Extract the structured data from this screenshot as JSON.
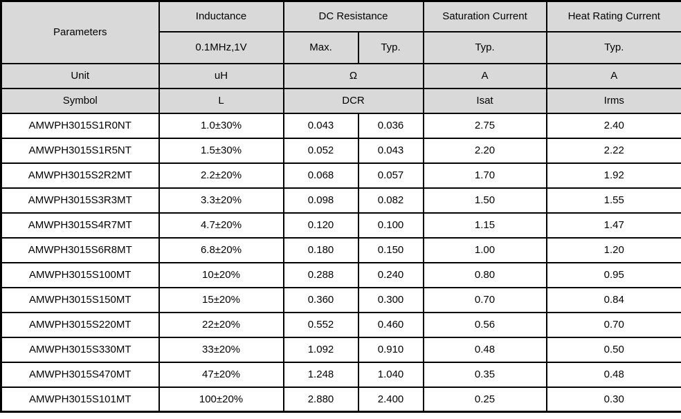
{
  "colors": {
    "header_bg": "#d9d9d9",
    "border": "#000000",
    "row_bg": "#ffffff"
  },
  "table": {
    "header": {
      "parameters": "Parameters",
      "inductance": "Inductance",
      "inductance_condition": "0.1MHz,1V",
      "dc_resistance": "DC Resistance",
      "dcr_max": "Max.",
      "dcr_typ": "Typ.",
      "saturation_current": "Saturation Current",
      "saturation_typ": "Typ.",
      "heat_rating_current": "Heat Rating Current",
      "heat_typ": "Typ."
    },
    "unit_row": {
      "label": "Unit",
      "inductance": "uH",
      "dcr": "Ω",
      "isat": "A",
      "irms": "A"
    },
    "symbol_row": {
      "label": "Symbol",
      "inductance": "L",
      "dcr": "DCR",
      "isat": "Isat",
      "irms": "Irms"
    },
    "columns": [
      "symbol",
      "inductance",
      "dcr_max",
      "dcr_typ",
      "isat",
      "irms"
    ],
    "rows": [
      {
        "symbol": "AMWPH3015S1R0NT",
        "inductance": "1.0±30%",
        "dcr_max": "0.043",
        "dcr_typ": "0.036",
        "isat": "2.75",
        "irms": "2.40"
      },
      {
        "symbol": "AMWPH3015S1R5NT",
        "inductance": "1.5±30%",
        "dcr_max": "0.052",
        "dcr_typ": "0.043",
        "isat": "2.20",
        "irms": "2.22"
      },
      {
        "symbol": "AMWPH3015S2R2MT",
        "inductance": "2.2±20%",
        "dcr_max": "0.068",
        "dcr_typ": "0.057",
        "isat": "1.70",
        "irms": "1.92"
      },
      {
        "symbol": "AMWPH3015S3R3MT",
        "inductance": "3.3±20%",
        "dcr_max": "0.098",
        "dcr_typ": "0.082",
        "isat": "1.50",
        "irms": "1.55"
      },
      {
        "symbol": "AMWPH3015S4R7MT",
        "inductance": "4.7±20%",
        "dcr_max": "0.120",
        "dcr_typ": "0.100",
        "isat": "1.15",
        "irms": "1.47"
      },
      {
        "symbol": "AMWPH3015S6R8MT",
        "inductance": "6.8±20%",
        "dcr_max": "0.180",
        "dcr_typ": "0.150",
        "isat": "1.00",
        "irms": "1.20"
      },
      {
        "symbol": "AMWPH3015S100MT",
        "inductance": "10±20%",
        "dcr_max": "0.288",
        "dcr_typ": "0.240",
        "isat": "0.80",
        "irms": "0.95"
      },
      {
        "symbol": "AMWPH3015S150MT",
        "inductance": "15±20%",
        "dcr_max": "0.360",
        "dcr_typ": "0.300",
        "isat": "0.70",
        "irms": "0.84"
      },
      {
        "symbol": "AMWPH3015S220MT",
        "inductance": "22±20%",
        "dcr_max": "0.552",
        "dcr_typ": "0.460",
        "isat": "0.56",
        "irms": "0.70"
      },
      {
        "symbol": "AMWPH3015S330MT",
        "inductance": "33±20%",
        "dcr_max": "1.092",
        "dcr_typ": "0.910",
        "isat": "0.48",
        "irms": "0.50"
      },
      {
        "symbol": "AMWPH3015S470MT",
        "inductance": "47±20%",
        "dcr_max": "1.248",
        "dcr_typ": "1.040",
        "isat": "0.35",
        "irms": "0.48"
      },
      {
        "symbol": "AMWPH3015S101MT",
        "inductance": "100±20%",
        "dcr_max": "2.880",
        "dcr_typ": "2.400",
        "isat": "0.25",
        "irms": "0.30"
      }
    ]
  }
}
